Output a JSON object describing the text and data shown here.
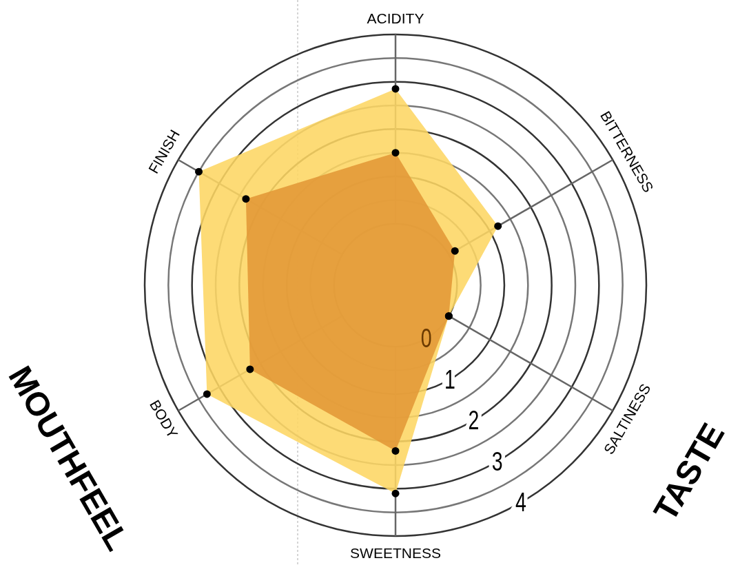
{
  "chart_data": {
    "type": "radar",
    "categories": [
      "ACIDITY",
      "BITTERNESS",
      "SALTINESS",
      "SWEETNESS",
      "BODY",
      "FINISH"
    ],
    "series": [
      {
        "color": "#fdd663",
        "values": [
          2.85,
          1.2,
          0,
          3.1,
          3.3,
          3.5
        ]
      },
      {
        "color": "#e29737",
        "values": [
          1.5,
          0.15,
          0,
          2.2,
          2.25,
          2.35
        ]
      }
    ],
    "ylim": [
      -1.3,
      4
    ],
    "yticks": [
      0,
      1,
      2,
      3,
      4
    ],
    "grid": true,
    "marker": "circle",
    "annotations": [
      "MOUTHFEEL",
      "TASTE"
    ]
  }
}
